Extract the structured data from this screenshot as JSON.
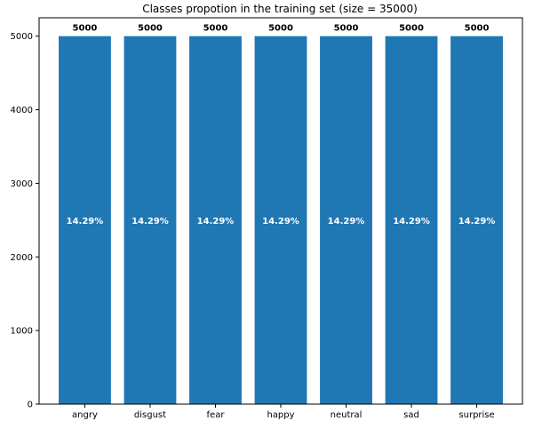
{
  "chart_data": {
    "type": "bar",
    "title": "Classes propotion in the training set (size = 35000)",
    "xlabel": "",
    "ylabel": "",
    "categories": [
      "angry",
      "disgust",
      "fear",
      "happy",
      "neutral",
      "sad",
      "surprise"
    ],
    "values": [
      5000,
      5000,
      5000,
      5000,
      5000,
      5000,
      5000
    ],
    "value_labels": [
      "5000",
      "5000",
      "5000",
      "5000",
      "5000",
      "5000",
      "5000"
    ],
    "percent_labels": [
      "14.29%",
      "14.29%",
      "14.29%",
      "14.29%",
      "14.29%",
      "14.29%",
      "14.29%"
    ],
    "ylim": [
      0,
      5250
    ],
    "yticks": [
      0,
      1000,
      2000,
      3000,
      4000,
      5000
    ],
    "grid": false,
    "bar_color": "#1f77b4"
  }
}
